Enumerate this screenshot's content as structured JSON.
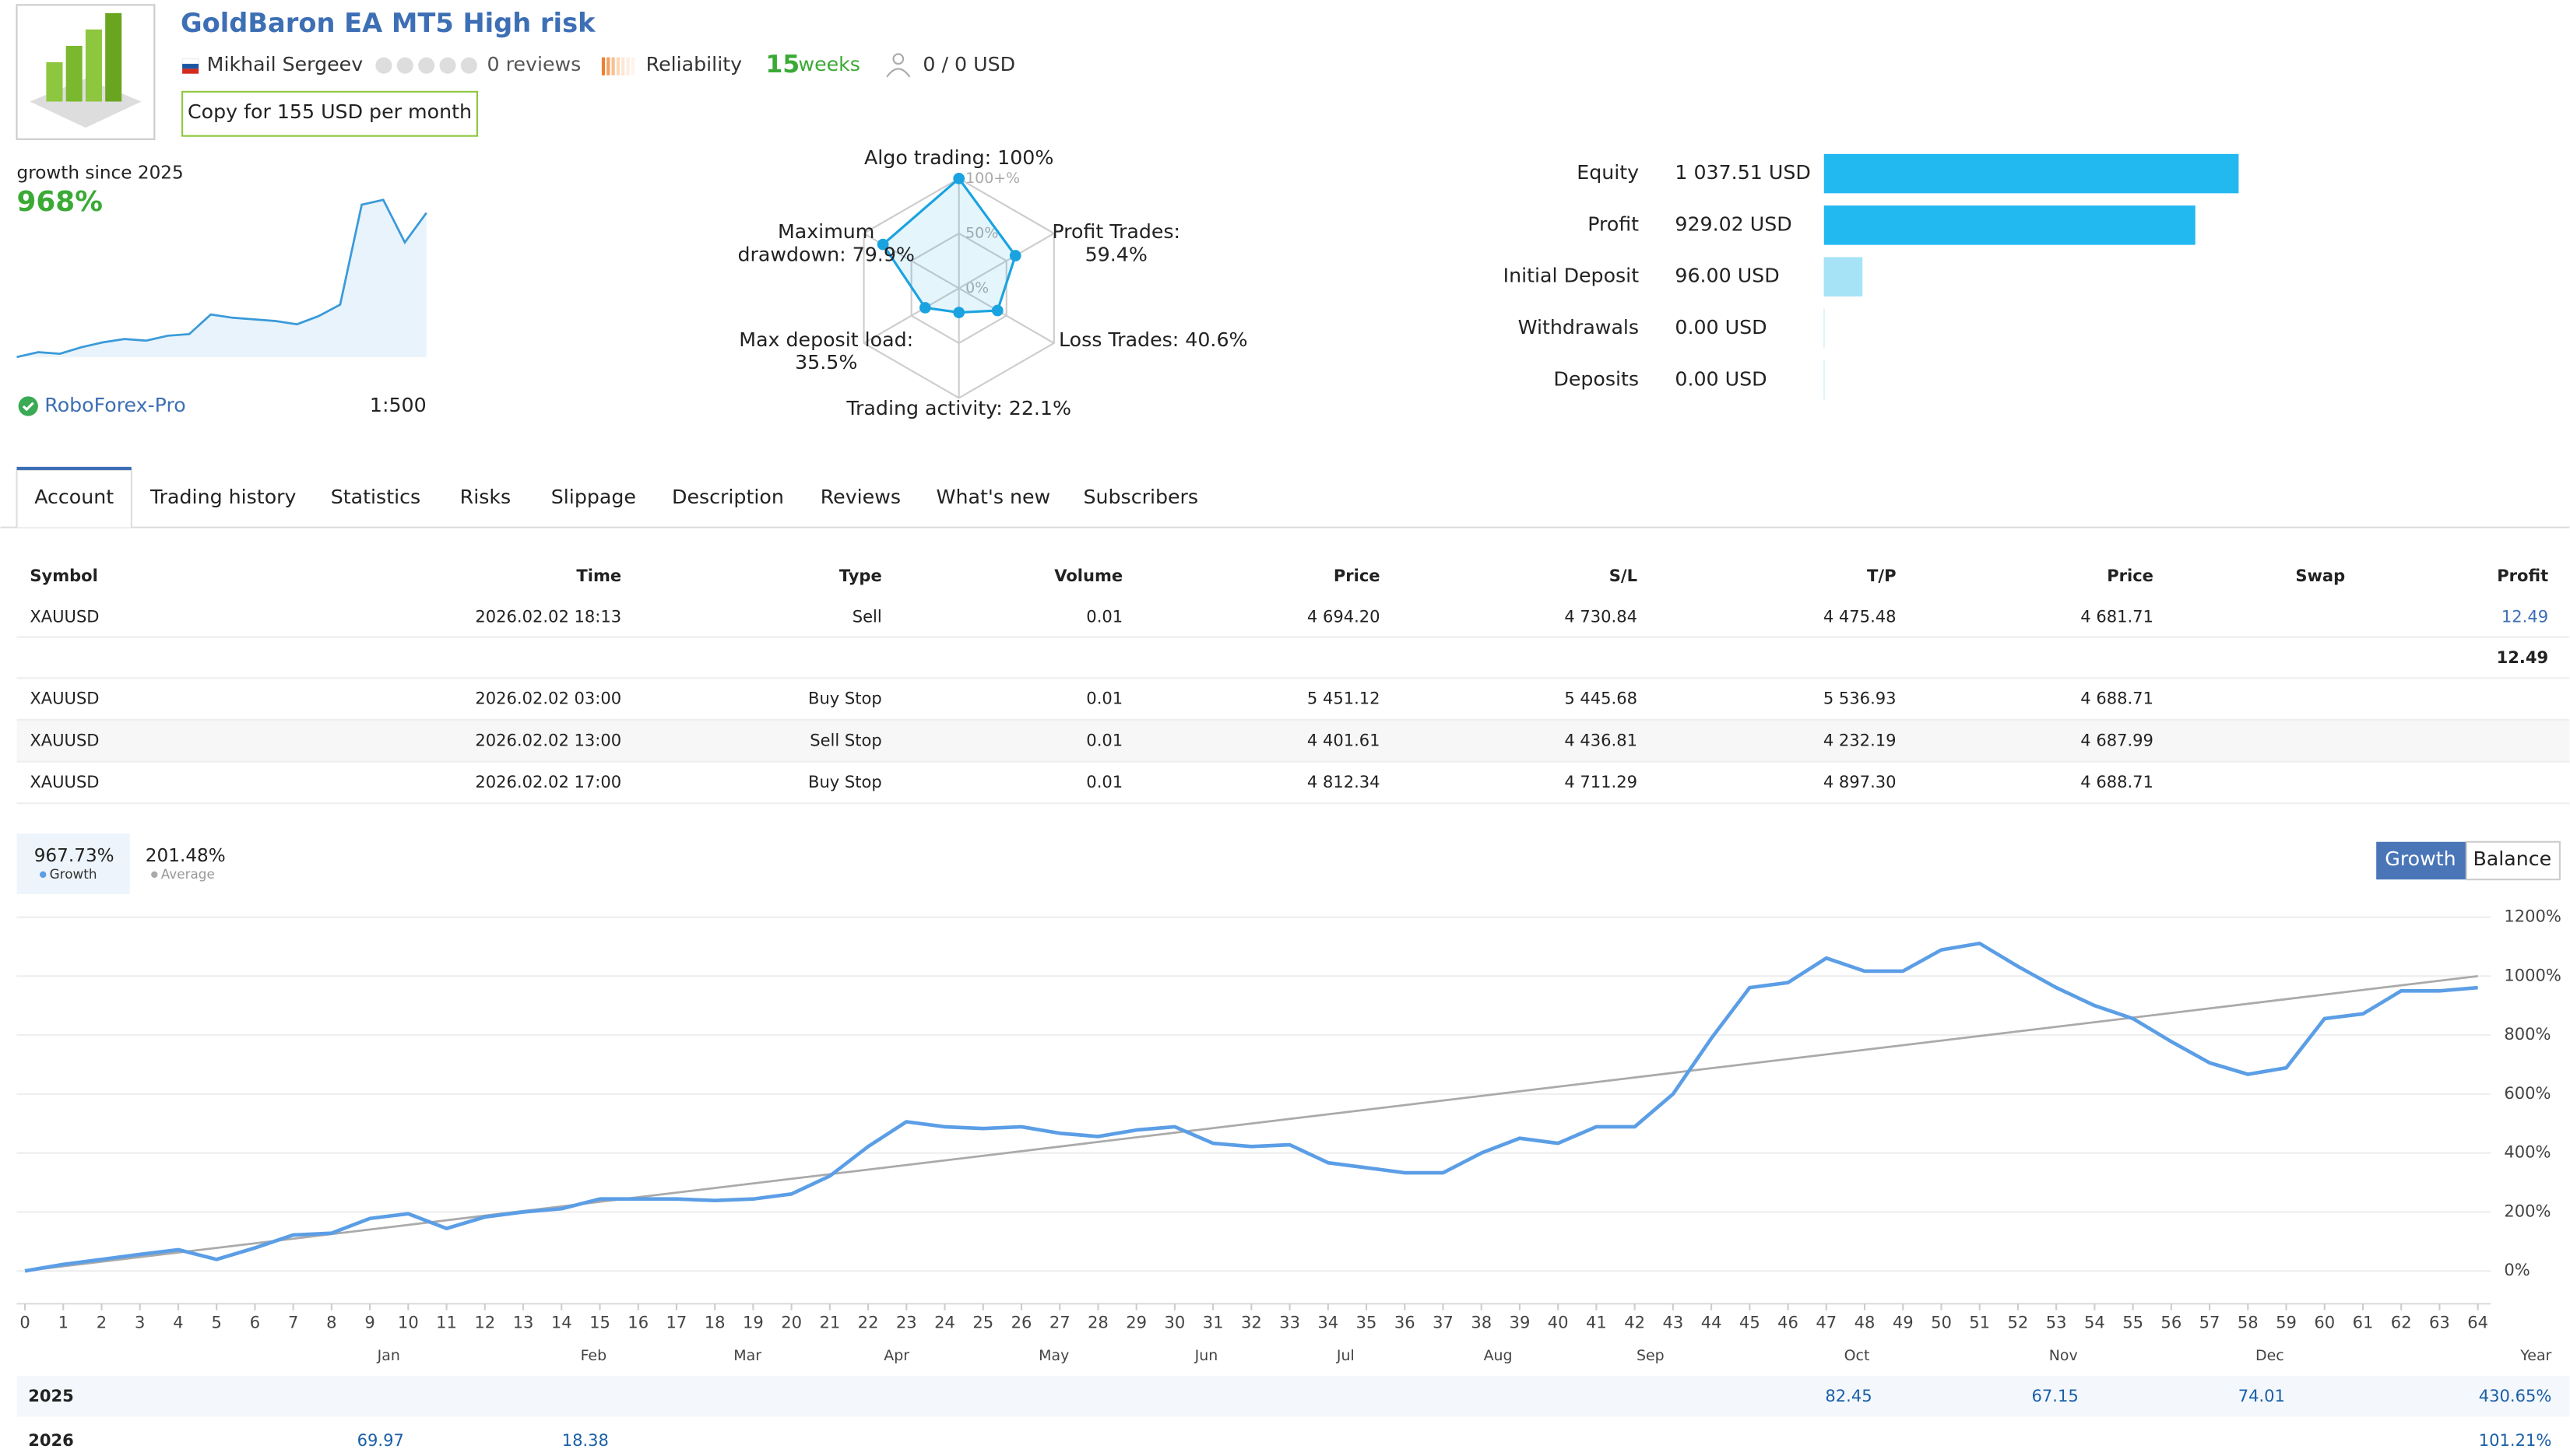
{
  "header": {
    "title": "GoldBaron EA MT5 High risk",
    "author": "Mikhail Sergeev",
    "reviews": "0 reviews",
    "reliability": "Reliability",
    "weeks_count": "15",
    "weeks_label": "weeks",
    "subscribers": "0 / 0 USD",
    "copy_button": "Copy for 155 USD per month"
  },
  "growth_summary": {
    "label": "growth since 2025",
    "value": "968%",
    "broker": "RoboForex-Pro",
    "leverage": "1:500",
    "sparkline": {
      "ylim": [
        0,
        1000
      ],
      "values": [
        0,
        30,
        20,
        60,
        90,
        110,
        100,
        130,
        140,
        260,
        240,
        230,
        220,
        200,
        250,
        320,
        930,
        960,
        700,
        880
      ]
    }
  },
  "radar": {
    "ticks": [
      {
        "value": 100,
        "label": "100+%"
      },
      {
        "value": 50,
        "label": "50%"
      },
      {
        "value": 0,
        "label": "0%"
      }
    ],
    "axes": [
      {
        "label": [
          "Algo trading: 100%"
        ],
        "value": 100
      },
      {
        "label": [
          "Profit Trades:",
          "59.4%"
        ],
        "value": 59.4
      },
      {
        "label": [
          "Loss Trades: 40.6%"
        ],
        "value": 40.6
      },
      {
        "label": [
          "Trading activity: 22.1%"
        ],
        "value": 22.1
      },
      {
        "label": [
          "Max deposit load:",
          "35.5%"
        ],
        "value": 35.5
      },
      {
        "label": [
          "Maximum",
          "drawdown: 79.9%"
        ],
        "value": 79.9
      }
    ]
  },
  "account": {
    "items": [
      {
        "name": "Equity",
        "value": 1037.51,
        "value_label": "1 037.51 USD",
        "color": "#22b8f0"
      },
      {
        "name": "Profit",
        "value": 929.02,
        "value_label": "929.02 USD",
        "color": "#22b8f0"
      },
      {
        "name": "Initial Deposit",
        "value": 96.0,
        "value_label": "96.00 USD",
        "color": "#a6e3f7"
      },
      {
        "name": "Withdrawals",
        "value": 0.0,
        "value_label": "0.00 USD",
        "color": "#a6e3f7"
      },
      {
        "name": "Deposits",
        "value": 0.0,
        "value_label": "0.00 USD",
        "color": "#a6e3f7"
      }
    ]
  },
  "tabs": [
    "Account",
    "Trading history",
    "Statistics",
    "Risks",
    "Slippage",
    "Description",
    "Reviews",
    "What's new",
    "Subscribers"
  ],
  "positions": {
    "columns": [
      "Symbol",
      "Time",
      "Type",
      "Volume",
      "Price",
      "S/L",
      "T/P",
      "Price",
      "Swap",
      "Profit"
    ],
    "rows": [
      [
        "XAUUSD",
        "2026.02.02 18:13",
        "Sell",
        "0.01",
        "4 694.20",
        "4 730.84",
        "4 475.48",
        "4 681.71",
        "",
        "12.49"
      ]
    ],
    "total": "12.49",
    "orders": [
      [
        "XAUUSD",
        "2026.02.02 03:00",
        "Buy Stop",
        "0.01",
        "5 451.12",
        "5 445.68",
        "5 536.93",
        "4 688.71"
      ],
      [
        "XAUUSD",
        "2026.02.02 13:00",
        "Sell Stop",
        "0.01",
        "4 401.61",
        "4 436.81",
        "4 232.19",
        "4 687.99"
      ],
      [
        "XAUUSD",
        "2026.02.02 17:00",
        "Buy Stop",
        "0.01",
        "4 812.34",
        "4 711.29",
        "4 897.30",
        "4 688.71"
      ]
    ]
  },
  "chart_data": {
    "type": "line",
    "buttons": [
      "Growth",
      "Balance"
    ],
    "x": [
      0,
      1,
      2,
      3,
      4,
      5,
      6,
      7,
      8,
      9,
      10,
      11,
      12,
      13,
      14,
      15,
      16,
      17,
      18,
      19,
      20,
      21,
      22,
      23,
      24,
      25,
      26,
      27,
      28,
      29,
      30,
      31,
      32,
      33,
      34,
      35,
      36,
      37,
      38,
      39,
      40,
      41,
      42,
      43,
      44,
      45,
      46,
      47,
      48,
      49,
      50,
      51,
      52,
      53,
      54,
      55,
      56,
      57,
      58,
      59,
      60,
      61,
      62,
      63,
      64
    ],
    "series": [
      {
        "name": "Growth",
        "summary": "967.73%",
        "color": "#5b9ee6",
        "values": [
          0,
          22,
          39,
          56,
          72,
          39,
          78,
          122,
          128,
          178,
          194,
          144,
          183,
          200,
          211,
          244,
          244,
          244,
          239,
          244,
          261,
          322,
          422,
          506,
          489,
          483,
          489,
          467,
          456,
          478,
          489,
          433,
          422,
          428,
          367,
          350,
          333,
          333,
          400,
          450,
          433,
          489,
          489,
          600,
          789,
          961,
          978,
          1061,
          1017,
          1017,
          1089,
          1111,
          1033,
          961,
          900,
          856,
          778,
          706,
          667,
          689,
          856,
          872,
          950,
          950,
          961
        ]
      },
      {
        "name": "Average",
        "summary": "201.48%",
        "color": "#aaaaaa",
        "x": [
          0,
          64
        ],
        "values": [
          0,
          1000
        ]
      }
    ],
    "xlim": [
      0,
      64
    ],
    "ylim": [
      -100,
      1200
    ],
    "xticks": [
      0,
      1,
      2,
      3,
      4,
      5,
      6,
      7,
      8,
      9,
      10,
      11,
      12,
      13,
      14,
      15,
      16,
      17,
      18,
      19,
      20,
      21,
      22,
      23,
      24,
      25,
      26,
      27,
      28,
      29,
      30,
      31,
      32,
      33,
      34,
      35,
      36,
      37,
      38,
      39,
      40,
      41,
      42,
      43,
      44,
      45,
      46,
      47,
      48,
      49,
      50,
      51,
      52,
      53,
      54,
      55,
      56,
      57,
      58,
      59,
      60,
      61,
      62,
      63,
      64
    ],
    "yticks": [
      {
        "value": 0,
        "label": "0%"
      },
      {
        "value": 200,
        "label": "200%"
      },
      {
        "value": 400,
        "label": "400%"
      },
      {
        "value": 600,
        "label": "600%"
      },
      {
        "value": 800,
        "label": "800%"
      },
      {
        "value": 1000,
        "label": "1000%"
      },
      {
        "value": 1200,
        "label": "1200%"
      }
    ],
    "grid": true
  },
  "annual": {
    "columns": [
      "Jan",
      "Feb",
      "Mar",
      "Apr",
      "May",
      "Jun",
      "Jul",
      "Aug",
      "Sep",
      "Oct",
      "Nov",
      "Dec",
      "Year"
    ],
    "rows": [
      {
        "year": "2025",
        "cells": [
          null,
          null,
          null,
          null,
          null,
          null,
          null,
          null,
          null,
          "82.45",
          "67.15",
          "74.01",
          "430.65%"
        ]
      },
      {
        "year": "2026",
        "cells": [
          "69.97",
          "18.38",
          null,
          null,
          null,
          null,
          null,
          null,
          null,
          null,
          null,
          null,
          "101.21%"
        ]
      }
    ]
  }
}
